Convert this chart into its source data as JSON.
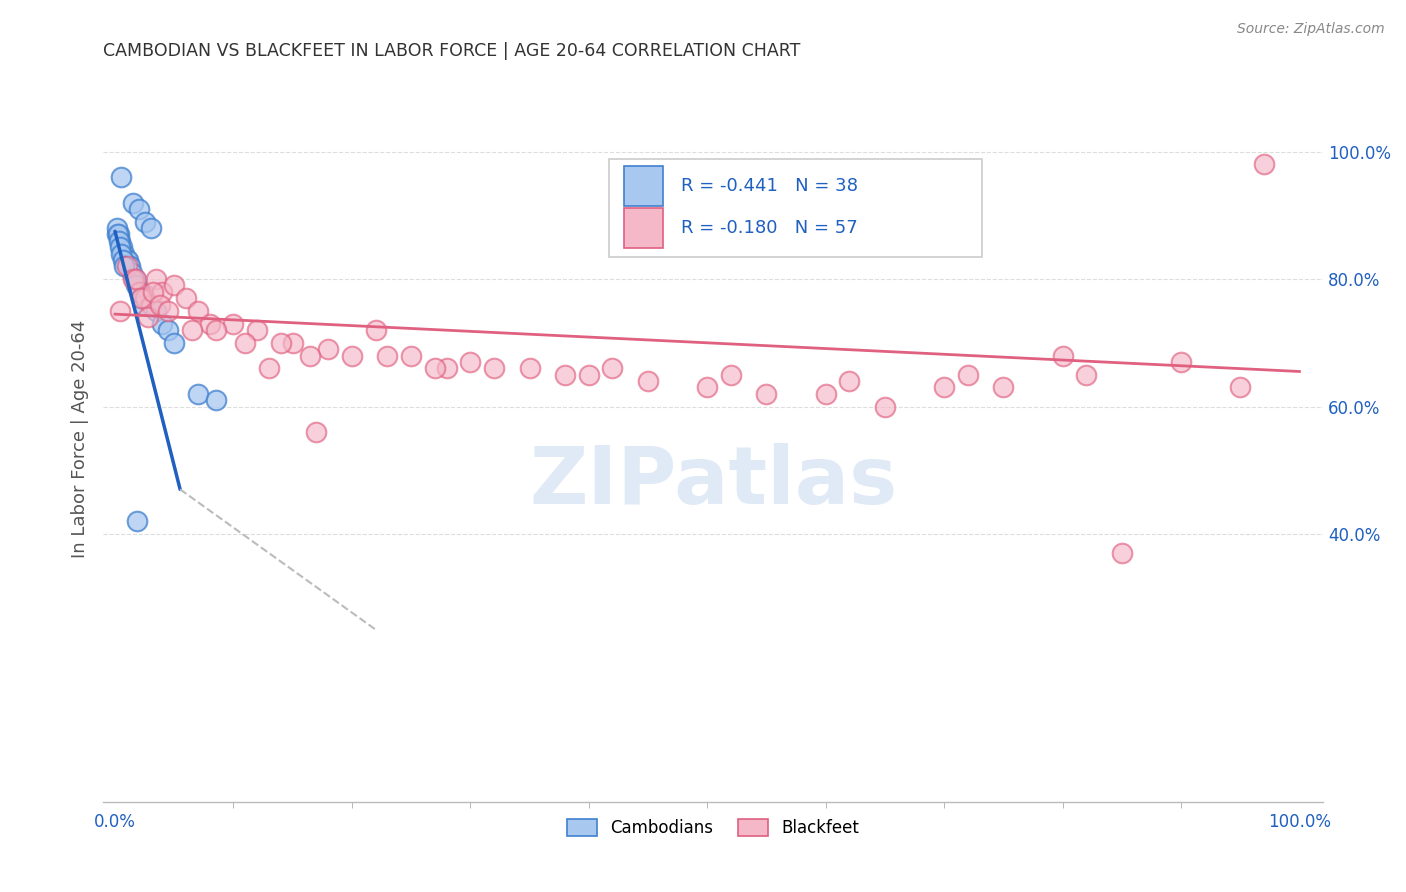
{
  "title": "CAMBODIAN VS BLACKFEET IN LABOR FORCE | AGE 20-64 CORRELATION CHART",
  "source": "Source: ZipAtlas.com",
  "ylabel": "In Labor Force | Age 20-64",
  "legend_label1": "Cambodians",
  "legend_label2": "Blackfeet",
  "r1": -0.441,
  "n1": 38,
  "r2": -0.18,
  "n2": 57,
  "color1": "#a8c8f0",
  "color2": "#f4b8c8",
  "edge_color1": "#4080d0",
  "edge_color2": "#e06080",
  "line_color1": "#2060c0",
  "line_color2": "#e06080",
  "dash_color": "#bbbbbb",
  "background_color": "#ffffff",
  "grid_color": "#dddddd",
  "watermark_color": "#c8d8f0",
  "title_color": "#333333",
  "axis_label_color": "#2060c0",
  "ylabel_color": "#555555",
  "source_color": "#888888",
  "cambodian_x": [
    0.5,
    1.5,
    2.0,
    2.5,
    3.0,
    0.2,
    0.3,
    0.4,
    0.6,
    0.7,
    0.8,
    0.9,
    1.0,
    1.1,
    1.2,
    1.3,
    1.4,
    1.6,
    1.7,
    1.8,
    2.1,
    2.2,
    2.3,
    2.4,
    3.5,
    4.0,
    4.5,
    5.0,
    0.15,
    0.25,
    0.35,
    0.45,
    0.55,
    0.65,
    0.75,
    7.0,
    8.5,
    1.9
  ],
  "cambodian_y": [
    96,
    92,
    91,
    89,
    88,
    87,
    87,
    86,
    85,
    84,
    84,
    83,
    83,
    83,
    82,
    82,
    81,
    80,
    80,
    79,
    78,
    77,
    77,
    76,
    75,
    73,
    72,
    70,
    88,
    87,
    86,
    85,
    84,
    83,
    82,
    62,
    61,
    42
  ],
  "blackfeet_x": [
    0.4,
    1.0,
    1.5,
    2.0,
    2.5,
    3.0,
    3.5,
    4.0,
    5.0,
    6.0,
    7.0,
    8.0,
    10.0,
    12.0,
    15.0,
    18.0,
    20.0,
    22.0,
    25.0,
    30.0,
    35.0,
    40.0,
    45.0,
    50.0,
    55.0,
    60.0,
    65.0,
    70.0,
    75.0,
    80.0,
    85.0,
    90.0,
    95.0,
    97.0,
    1.8,
    2.2,
    2.8,
    3.2,
    3.8,
    4.5,
    6.5,
    8.5,
    11.0,
    14.0,
    16.5,
    23.0,
    28.0,
    32.0,
    17.0,
    42.0,
    52.0,
    62.0,
    72.0,
    82.0,
    13.0,
    27.0,
    38.0
  ],
  "blackfeet_y": [
    75,
    82,
    80,
    78,
    77,
    76,
    80,
    78,
    79,
    77,
    75,
    73,
    73,
    72,
    70,
    69,
    68,
    72,
    68,
    67,
    66,
    65,
    64,
    63,
    62,
    62,
    60,
    63,
    63,
    68,
    37,
    67,
    63,
    98,
    80,
    77,
    74,
    78,
    76,
    75,
    72,
    72,
    70,
    70,
    68,
    68,
    66,
    66,
    56,
    66,
    65,
    64,
    65,
    65,
    66,
    66,
    65
  ],
  "cam_line_x0": 0.0,
  "cam_line_y0": 87.5,
  "cam_line_x1": 5.5,
  "cam_line_y1": 47.0,
  "cam_dash_x0": 5.5,
  "cam_dash_y0": 47.0,
  "cam_dash_x1": 22.0,
  "cam_dash_y1": 25.0,
  "bf_line_x0": 0.0,
  "bf_line_y0": 74.5,
  "bf_line_x1": 100.0,
  "bf_line_y1": 65.5,
  "xlim_min": -1.0,
  "xlim_max": 102.0,
  "ylim_min": -2.0,
  "ylim_max": 112.0,
  "yticks": [
    40.0,
    60.0,
    80.0,
    100.0
  ],
  "ytick_labels": [
    "40.0%",
    "60.0%",
    "80.0%",
    "100.0%"
  ],
  "xtick_left_label": "0.0%",
  "xtick_right_label": "100.0%"
}
